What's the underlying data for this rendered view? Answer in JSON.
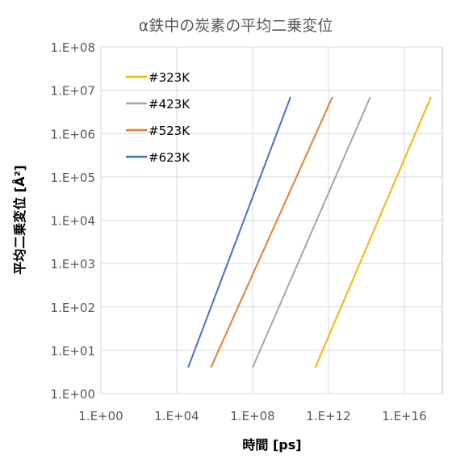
{
  "chart_data": {
    "type": "line",
    "title": "α鉄中の炭素の平均二乗変位",
    "xlabel": "時間 [ps]",
    "ylabel": "平均二乗変位 [Å²]",
    "x_scale": "log",
    "y_scale": "log",
    "xlim": [
      1,
      1e+18
    ],
    "ylim": [
      1,
      100000000.0
    ],
    "x_ticks": [
      1,
      10000.0,
      100000000.0,
      1000000000000.0,
      1e+16
    ],
    "x_tick_labels": [
      "1.E+00",
      "1.E+04",
      "1.E+08",
      "1.E+12",
      "1.E+16"
    ],
    "y_ticks": [
      1,
      10,
      100,
      1000,
      10000,
      100000,
      1000000,
      10000000,
      100000000
    ],
    "y_tick_labels": [
      "1.E+00",
      "1.E+01",
      "1.E+02",
      "1.E+03",
      "1.E+04",
      "1.E+05",
      "1.E+06",
      "1.E+07",
      "1.E+08"
    ],
    "grid": true,
    "legend_position": "top-left",
    "series": [
      {
        "name": "#323K",
        "color": "#F5B800",
        "x": [
          200000000000.0,
          2.5e+17
        ],
        "y": [
          4,
          7000000.0
        ]
      },
      {
        "name": "#423K",
        "color": "#A6A6A6",
        "x": [
          100000000.0,
          160000000000000.0
        ],
        "y": [
          4,
          7000000.0
        ]
      },
      {
        "name": "#523K",
        "color": "#ED7D31",
        "x": [
          630000.0,
          1600000000000.0
        ],
        "y": [
          4,
          7000000.0
        ]
      },
      {
        "name": "#623K",
        "color": "#4472C4",
        "x": [
          40000.0,
          10000000000.0
        ],
        "y": [
          4,
          7000000.0
        ]
      }
    ]
  }
}
